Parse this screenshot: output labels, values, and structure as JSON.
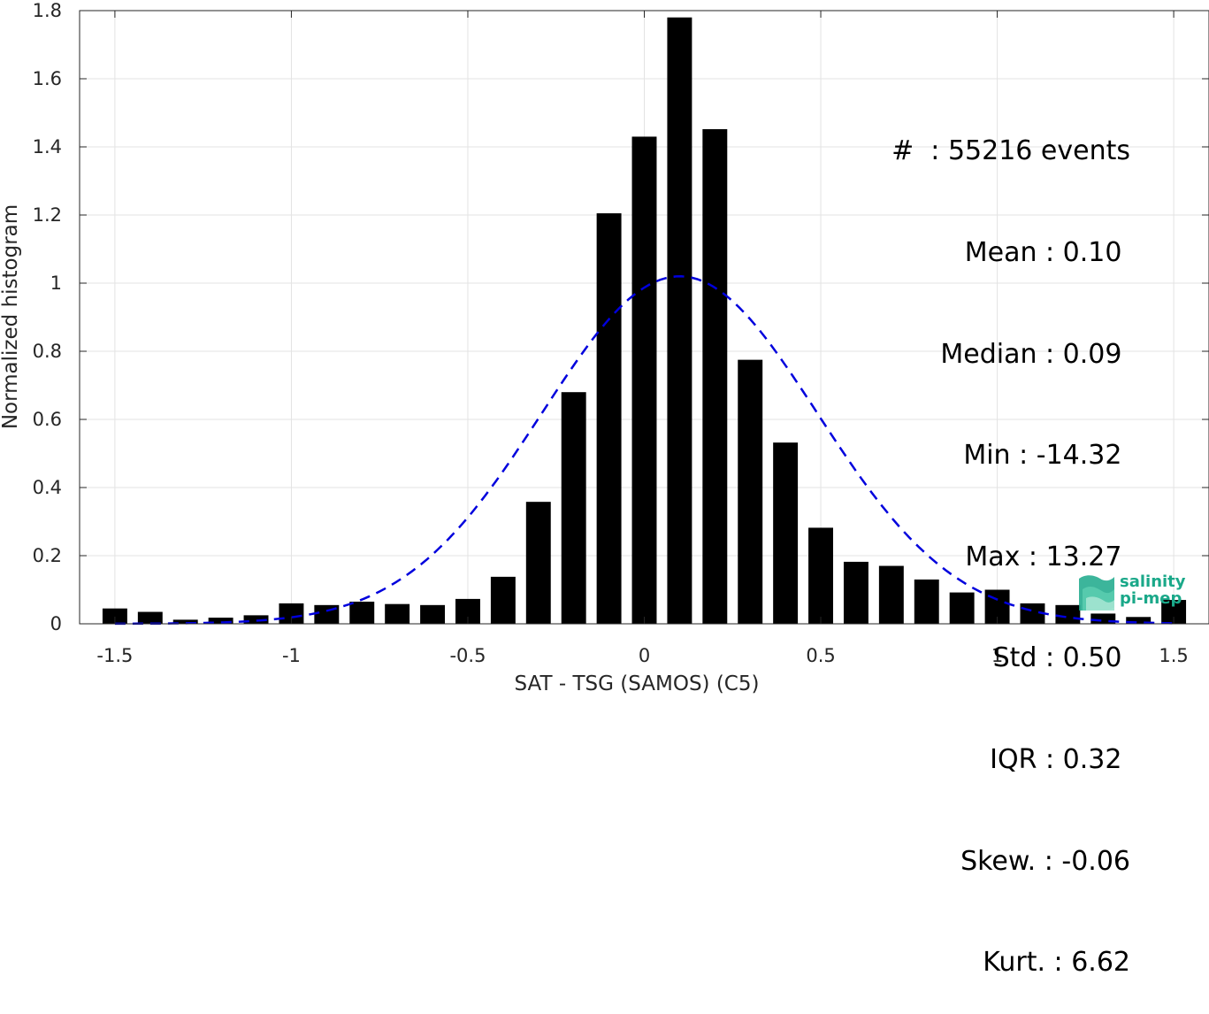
{
  "chart_data": {
    "type": "bar",
    "xlabel": "SAT - TSG (SAMOS) (C5)",
    "ylabel": "Normalized histogram",
    "xlim": [
      -1.6,
      1.6
    ],
    "ylim": [
      0,
      1.8
    ],
    "xticks": [
      "-1.5",
      "-1",
      "-0.5",
      "0",
      "0.5",
      "1",
      "1.5"
    ],
    "xtick_values": [
      -1.5,
      -1,
      -0.5,
      0,
      0.5,
      1,
      1.5
    ],
    "yticks": [
      "0",
      "0.2",
      "0.4",
      "0.6",
      "0.8",
      "1",
      "1.2",
      "1.4",
      "1.6",
      "1.8"
    ],
    "ytick_values": [
      0,
      0.2,
      0.4,
      0.6,
      0.8,
      1,
      1.2,
      1.4,
      1.6,
      1.8
    ],
    "grid": true,
    "bins": [
      -1.5,
      -1.4,
      -1.3,
      -1.2,
      -1.1,
      -1.0,
      -0.9,
      -0.8,
      -0.7,
      -0.6,
      -0.5,
      -0.4,
      -0.3,
      -0.2,
      -0.1,
      0.0,
      0.1,
      0.2,
      0.3,
      0.4,
      0.5,
      0.6,
      0.7,
      0.8,
      0.9,
      1.0,
      1.1,
      1.2,
      1.3,
      1.4,
      1.5
    ],
    "values": [
      0.045,
      0.035,
      0.012,
      0.018,
      0.025,
      0.06,
      0.055,
      0.065,
      0.058,
      0.055,
      0.073,
      0.138,
      0.358,
      0.68,
      1.205,
      1.43,
      1.78,
      1.452,
      0.775,
      0.532,
      0.282,
      0.182,
      0.17,
      0.13,
      0.092,
      0.1,
      0.06,
      0.055,
      0.03,
      0.02,
      0.07
    ],
    "bar_color": "#000000",
    "fit_curve": {
      "style": "dashed",
      "color": "#0000dd",
      "mean": 0.1,
      "std": 0.39,
      "peak": 1.02
    },
    "stats": [
      "#  : 55216 events",
      "Mean : 0.10 ",
      "Median : 0.09 ",
      "Min : -14.32 ",
      "Max : 13.27 ",
      "Std : 0.50 ",
      "IQR : 0.32 ",
      "Skew. : -0.06",
      "Kurt. : 6.62"
    ]
  },
  "logo": {
    "line1": "salinity",
    "line2": "pi-mep",
    "color": "#1aa889"
  }
}
